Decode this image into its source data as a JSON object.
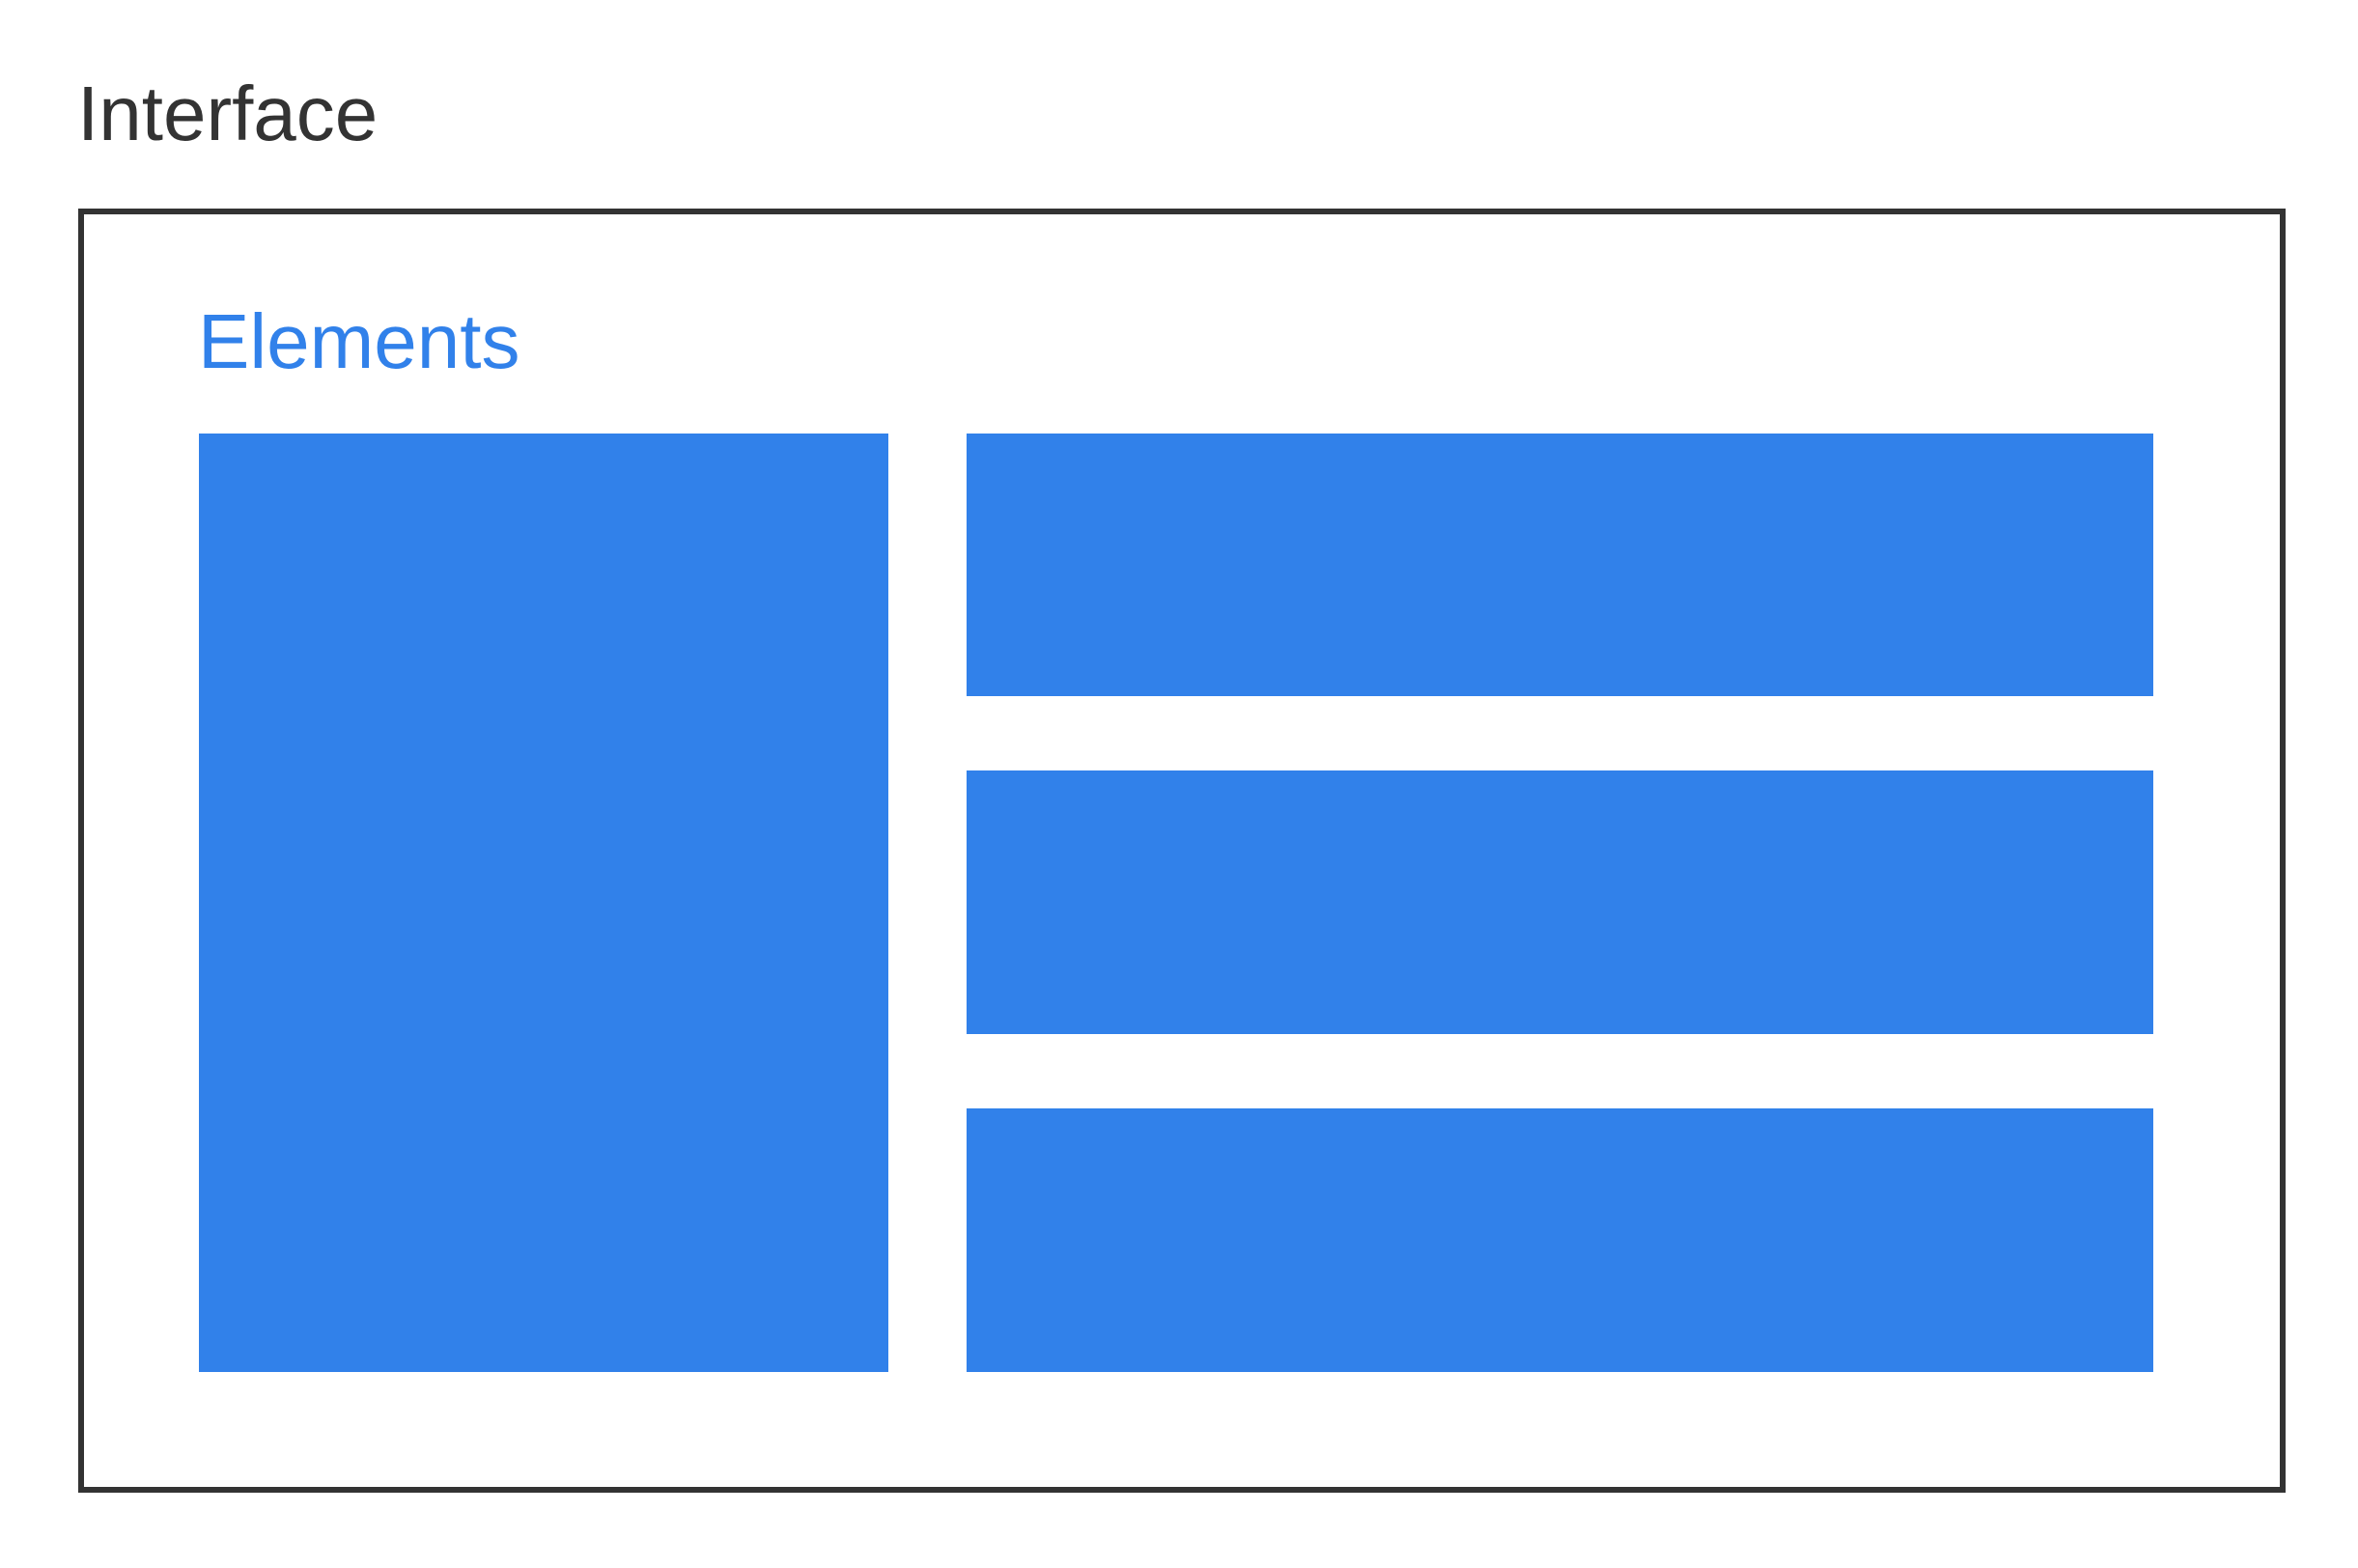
{
  "interface": {
    "title": "Interface",
    "border_color": "#333333"
  },
  "elements": {
    "title": "Elements",
    "accent_color": "#3181ea",
    "blocks": [
      {
        "name": "left-panel"
      },
      {
        "name": "right-row-1"
      },
      {
        "name": "right-row-2"
      },
      {
        "name": "right-row-3"
      }
    ]
  }
}
